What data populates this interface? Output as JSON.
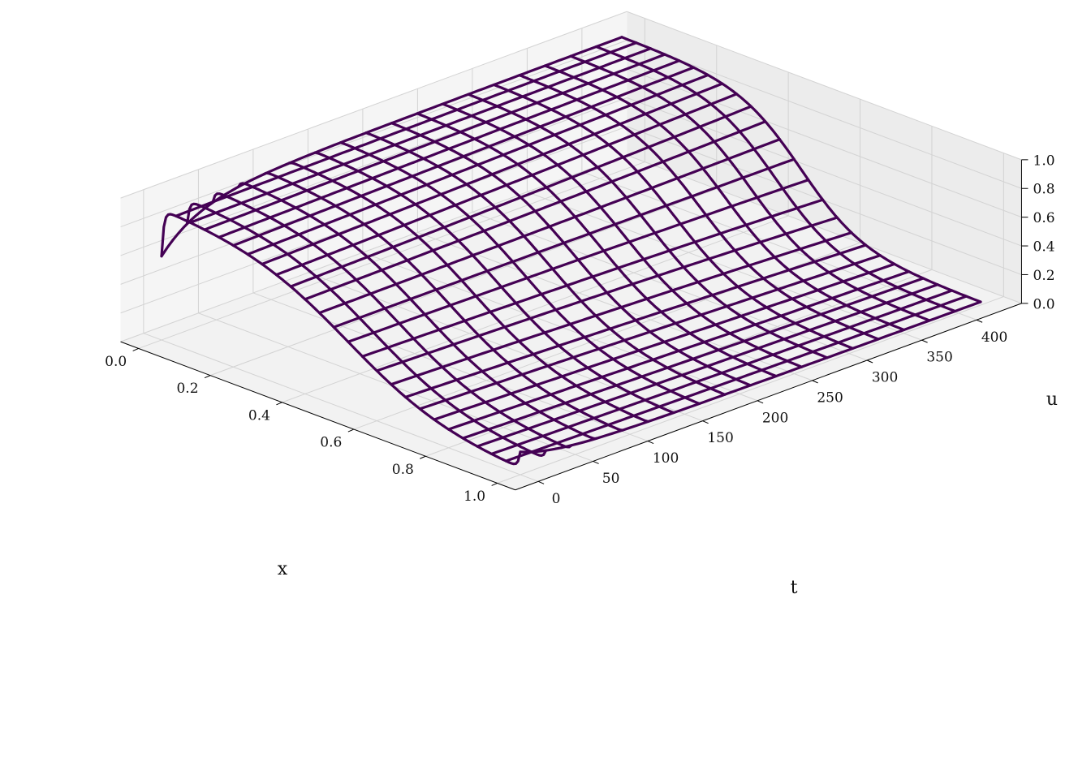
{
  "chart_data": {
    "type": "surface-wireframe",
    "xlabel": "x",
    "ylabel": "t",
    "zlabel": "u",
    "xlim": [
      0.0,
      1.0
    ],
    "ylim": [
      0,
      420
    ],
    "zlim": [
      0.0,
      1.0
    ],
    "x_ticks": [
      "0.0",
      "0.2",
      "0.4",
      "0.6",
      "0.8",
      "1.0"
    ],
    "t_ticks": [
      "0",
      "50",
      "100",
      "150",
      "200",
      "250",
      "300",
      "350",
      "400"
    ],
    "u_ticks": [
      "0.0",
      "0.2",
      "0.4",
      "0.6",
      "0.8",
      "1.0"
    ],
    "x_tick_values": [
      0.0,
      0.2,
      0.4,
      0.6,
      0.8,
      1.0
    ],
    "t_tick_values": [
      0,
      50,
      100,
      150,
      200,
      250,
      300,
      350,
      400
    ],
    "u_tick_values": [
      0.0,
      0.2,
      0.4,
      0.6,
      0.8,
      1.0
    ],
    "grid": true,
    "wire_color": "#440154",
    "surface": {
      "description_of_values": "u(x,t) sigmoid front: high near x=0, low near x=1, sharpening with time",
      "x_grid_count": 26,
      "t_grid_count": 19,
      "t_max": 420,
      "u_high": 0.93,
      "u_low": 0.02,
      "front_center_x": [
        0.52,
        0.5
      ],
      "front_width_t0": 0.14,
      "front_width_tmax": 0.085,
      "edge_dip_x0": 0.65,
      "edge_dip_x1": 0.11
    }
  }
}
